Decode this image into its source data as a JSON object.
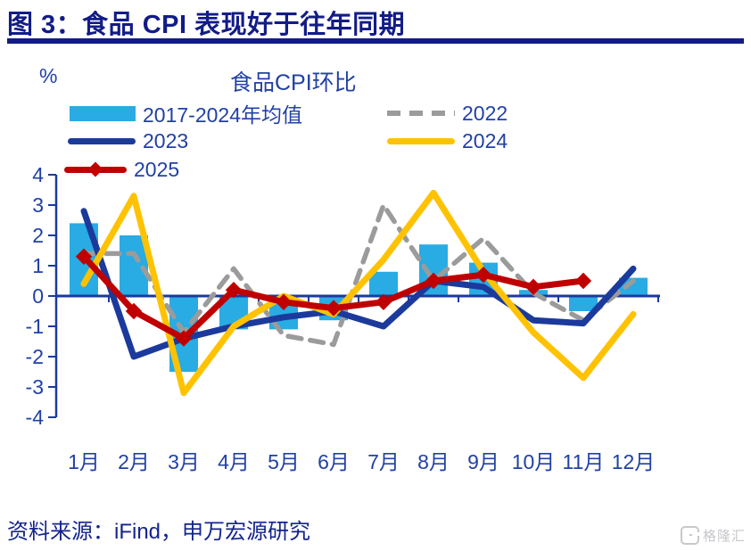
{
  "header": {
    "title": "图 3：食品 CPI 表现好于往年同期"
  },
  "footer": {
    "source": "资料来源：iFind，申万宏源研究",
    "logo_text": "格隆汇",
    "logo_icon": "gelonghui-g-mark"
  },
  "theme": {
    "title_color": "#121C86",
    "axis_color": "#1B3A9C",
    "text_color": "#2141A5",
    "background": "#FFFFFF",
    "watermark_color": "#C7C7CC"
  },
  "chart_data": {
    "type": "bar+line",
    "title": "食品CPI环比",
    "unit": "%",
    "categories": [
      "1月",
      "2月",
      "3月",
      "4月",
      "5月",
      "6月",
      "7月",
      "8月",
      "9月",
      "10月",
      "11月",
      "12月"
    ],
    "ylim": [
      -4,
      4
    ],
    "yticks": [
      4,
      3,
      2,
      1,
      0,
      -1,
      -2,
      -3,
      -4
    ],
    "grid": false,
    "legend_position": "top",
    "series": [
      {
        "name": "2017-2024年均值",
        "type": "bar",
        "color": "#29ABE3",
        "values": [
          2.4,
          2.0,
          -2.5,
          -1.1,
          -1.1,
          -0.8,
          0.8,
          1.7,
          1.1,
          0.2,
          -0.5,
          0.6
        ]
      },
      {
        "name": "2022",
        "type": "line",
        "style": "dashed",
        "color": "#9B9B9B",
        "values": [
          1.4,
          1.4,
          -1.2,
          0.9,
          -1.3,
          -1.6,
          3.0,
          0.5,
          1.9,
          0.1,
          -0.8,
          0.5
        ]
      },
      {
        "name": "2023",
        "type": "line",
        "style": "solid",
        "color": "#1B3A9C",
        "values": [
          2.8,
          -2.0,
          -1.4,
          -1.0,
          -0.7,
          -0.5,
          -1.0,
          0.5,
          0.3,
          -0.8,
          -0.9,
          0.9
        ]
      },
      {
        "name": "2024",
        "type": "line",
        "style": "solid",
        "color": "#FFC200",
        "values": [
          0.4,
          3.3,
          -3.2,
          -1.0,
          0.0,
          -0.6,
          1.2,
          3.4,
          0.8,
          -1.2,
          -2.7,
          -0.6
        ]
      },
      {
        "name": "2025",
        "type": "line",
        "style": "solid",
        "marker": "diamond",
        "color": "#C00000",
        "values": [
          1.3,
          -0.5,
          -1.4,
          0.2,
          -0.2,
          -0.4,
          -0.2,
          0.5,
          0.7,
          0.3,
          0.5
        ]
      }
    ]
  }
}
